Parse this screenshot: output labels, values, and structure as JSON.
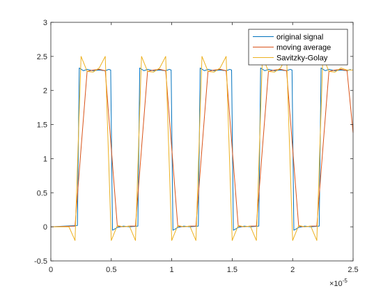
{
  "chart_data": {
    "type": "line",
    "title": "",
    "xlabel": "",
    "ylabel": "",
    "xlim": [
      0,
      2.5
    ],
    "ylim": [
      -0.5,
      3
    ],
    "x_exponent_label": "×10",
    "x_exponent_power": "-5",
    "x_ticks": [
      "0",
      "0.5",
      "1",
      "1.5",
      "2",
      "2.5"
    ],
    "y_ticks": [
      "-0.5",
      "0",
      "0.5",
      "1",
      "1.5",
      "2",
      "2.5",
      "3"
    ],
    "x_tick_values": [
      0,
      0.5,
      1,
      1.5,
      2,
      2.5
    ],
    "y_tick_values": [
      -0.5,
      0,
      0.5,
      1,
      1.5,
      2,
      2.5,
      3
    ],
    "grid": false,
    "legend_position": "top-right",
    "series": [
      {
        "name": "original signal",
        "color": "#0072BD",
        "x": [
          0,
          0.22,
          0.235,
          0.27,
          0.3,
          0.35,
          0.4,
          0.45,
          0.48,
          0.495,
          0.51,
          0.55,
          0.6,
          0.65,
          0.72,
          0.735,
          0.77,
          0.8,
          0.85,
          0.9,
          0.95,
          0.98,
          0.995,
          1.01,
          1.05,
          1.1,
          1.15,
          1.22,
          1.235,
          1.27,
          1.3,
          1.35,
          1.4,
          1.45,
          1.48,
          1.495,
          1.51,
          1.55,
          1.6,
          1.65,
          1.72,
          1.735,
          1.77,
          1.8,
          1.85,
          1.9,
          1.95,
          1.98,
          1.995,
          2.01,
          2.05,
          2.1,
          2.15,
          2.22,
          2.235,
          2.27,
          2.3,
          2.35,
          2.4,
          2.45,
          2.48
        ],
        "y": [
          0,
          0.02,
          2.33,
          2.29,
          2.31,
          2.29,
          2.3,
          2.29,
          2.31,
          2.3,
          -0.05,
          -0.01,
          0.01,
          0.0,
          0.01,
          2.33,
          2.29,
          2.31,
          2.29,
          2.3,
          2.29,
          2.31,
          2.3,
          -0.05,
          -0.01,
          0.01,
          0.0,
          0.01,
          2.33,
          2.29,
          2.31,
          2.29,
          2.3,
          2.29,
          2.31,
          2.3,
          -0.05,
          -0.01,
          0.01,
          0.0,
          0.01,
          2.33,
          2.29,
          2.31,
          2.29,
          2.3,
          2.29,
          2.31,
          2.3,
          -0.05,
          -0.01,
          0.01,
          0.0,
          0.01,
          2.33,
          2.29,
          2.31,
          2.29,
          2.3,
          2.29,
          2.31
        ]
      },
      {
        "name": "moving average",
        "color": "#D95319",
        "x": [
          0,
          0.2,
          0.25,
          0.3,
          0.35,
          0.4,
          0.45,
          0.5,
          0.55,
          0.6,
          0.65,
          0.7,
          0.75,
          0.8,
          0.85,
          0.9,
          0.95,
          1.0,
          1.05,
          1.1,
          1.15,
          1.2,
          1.25,
          1.3,
          1.35,
          1.4,
          1.45,
          1.5,
          1.55,
          1.6,
          1.65,
          1.7,
          1.75,
          1.8,
          1.85,
          1.9,
          1.95,
          2.0,
          2.05,
          2.1,
          2.15,
          2.2,
          2.25,
          2.3,
          2.35,
          2.4,
          2.45,
          2.5
        ],
        "y": [
          0,
          0.01,
          1.15,
          2.28,
          2.3,
          2.31,
          2.29,
          1.15,
          0.01,
          0.0,
          0.01,
          0.01,
          1.15,
          2.28,
          2.3,
          2.31,
          2.29,
          1.15,
          0.01,
          0.0,
          0.01,
          0.01,
          1.15,
          2.28,
          2.3,
          2.31,
          2.29,
          1.15,
          0.01,
          0.0,
          0.01,
          0.01,
          1.15,
          2.28,
          2.3,
          2.31,
          2.29,
          1.15,
          0.01,
          0.0,
          0.01,
          0.01,
          1.15,
          2.28,
          2.3,
          2.31,
          2.29,
          1.38
        ]
      },
      {
        "name": "Savitzky-Golay",
        "color": "#EDB120",
        "x": [
          0,
          0.15,
          0.2,
          0.25,
          0.3,
          0.35,
          0.4,
          0.45,
          0.5,
          0.55,
          0.6,
          0.65,
          0.7,
          0.75,
          0.8,
          0.85,
          0.9,
          0.95,
          1.0,
          1.05,
          1.1,
          1.15,
          1.2,
          1.25,
          1.3,
          1.35,
          1.4,
          1.45,
          1.5,
          1.55,
          1.6,
          1.65,
          1.7,
          1.75,
          1.8,
          1.85,
          1.9,
          1.95,
          2.0,
          2.05,
          2.1,
          2.15,
          2.2,
          2.25,
          2.3,
          2.35,
          2.4,
          2.45,
          2.5
        ],
        "y": [
          0,
          0.0,
          -0.2,
          2.5,
          2.28,
          2.27,
          2.33,
          2.5,
          -0.2,
          0.02,
          0.0,
          0.01,
          -0.2,
          2.5,
          2.28,
          2.27,
          2.33,
          2.5,
          -0.2,
          0.02,
          0.0,
          0.01,
          -0.2,
          2.5,
          2.28,
          2.27,
          2.33,
          2.5,
          -0.2,
          0.02,
          0.0,
          0.01,
          -0.2,
          2.5,
          2.28,
          2.27,
          2.33,
          2.5,
          -0.2,
          0.02,
          0.0,
          0.01,
          -0.2,
          2.5,
          2.28,
          2.27,
          2.33,
          2.3,
          2.3
        ]
      }
    ]
  }
}
